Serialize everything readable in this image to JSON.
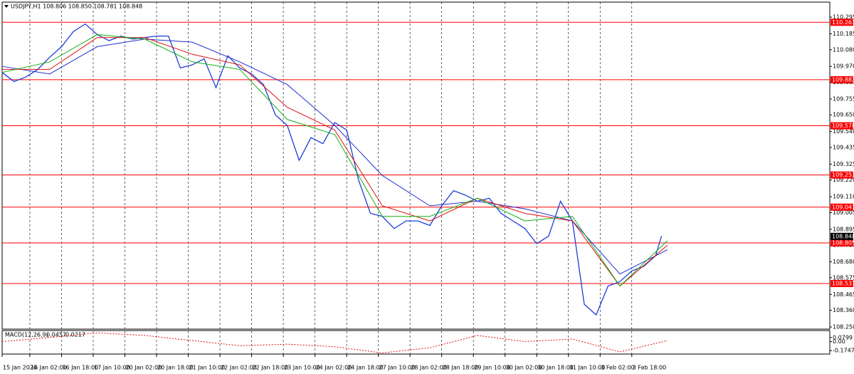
{
  "chart_data": {
    "type": "line",
    "title": "USDJPY,H1 108.806 108.850 108.781 108.848",
    "xlim": [
      0,
      418
    ],
    "ylim": [
      108.236,
      110.394
    ],
    "grid": true,
    "xticks": [
      {
        "value": 0,
        "label": "15 Jan 2020"
      },
      {
        "value": 14,
        "label": "16 Jan 02:00"
      },
      {
        "value": 30,
        "label": "16 Jan 18:00"
      },
      {
        "value": 46,
        "label": "17 Jan 10:00"
      },
      {
        "value": 62,
        "label": "20 Jan 02:00"
      },
      {
        "value": 78,
        "label": "20 Jan 18:00"
      },
      {
        "value": 94,
        "label": "21 Jan 10:00"
      },
      {
        "value": 110,
        "label": "22 Jan 02:00"
      },
      {
        "value": 126,
        "label": "22 Jan 18:00"
      },
      {
        "value": 142,
        "label": "23 Jan 10:00"
      },
      {
        "value": 158,
        "label": "24 Jan 02:00"
      },
      {
        "value": 174,
        "label": "24 Jan 18:00"
      },
      {
        "value": 190,
        "label": "27 Jan 10:00"
      },
      {
        "value": 206,
        "label": "28 Jan 02:00"
      },
      {
        "value": 222,
        "label": "28 Jan 18:00"
      },
      {
        "value": 238,
        "label": "29 Jan 10:00"
      },
      {
        "value": 254,
        "label": "30 Jan 02:00"
      },
      {
        "value": 270,
        "label": "30 Jan 18:00"
      },
      {
        "value": 286,
        "label": "31 Jan 10:00"
      },
      {
        "value": 302,
        "label": "3 Feb 02:00"
      },
      {
        "value": 318,
        "label": "3 Feb 18:00"
      }
    ],
    "yticks": [
      110.295,
      110.185,
      {
        "value": 110.08,
        "label": "110.080"
      },
      {
        "value": 109.97,
        "label": "109.970"
      },
      109.865,
      109.755,
      {
        "value": 109.65,
        "label": "109.650"
      },
      {
        "value": 109.54,
        "label": "109.540"
      },
      109.435,
      109.325,
      {
        "value": 109.22,
        "label": "109.220"
      },
      {
        "value": 109.11,
        "label": "109.110"
      },
      109.005,
      108.895,
      {
        "value": 108.79,
        "label": "108.790"
      },
      {
        "value": 108.68,
        "label": "108.680"
      },
      108.575,
      108.465,
      {
        "value": 108.36,
        "label": "108.360"
      },
      {
        "value": 108.25,
        "label": "108.250"
      }
    ],
    "levels": [
      110.261,
      109.882,
      109.578,
      109.253,
      109.041,
      108.805,
      108.537
    ],
    "level_color": "#ff0000",
    "current_price": 108.848,
    "series": [
      {
        "color": "#1e3fd8",
        "x": [
          0,
          6,
          12,
          18,
          24,
          30,
          36,
          42,
          48,
          54,
          60,
          66,
          72,
          78,
          84,
          90,
          96,
          102,
          108,
          114,
          120,
          126,
          132,
          138,
          144,
          150,
          156,
          162,
          168,
          174,
          180,
          186,
          192,
          198,
          204,
          210,
          216,
          222,
          228,
          234,
          240,
          246,
          252,
          258,
          264,
          270,
          276,
          282,
          288,
          294,
          300,
          306,
          312,
          318,
          324,
          330,
          333
        ],
        "values": [
          109.93,
          109.87,
          109.9,
          109.95,
          110.03,
          110.1,
          110.2,
          110.25,
          110.18,
          110.14,
          110.17,
          110.15,
          110.16,
          110.17,
          110.17,
          109.96,
          109.98,
          110.02,
          109.83,
          110.04,
          109.96,
          109.92,
          109.85,
          109.65,
          109.58,
          109.35,
          109.5,
          109.46,
          109.6,
          109.55,
          109.22,
          109.0,
          108.98,
          108.9,
          108.95,
          108.95,
          108.92,
          109.05,
          109.15,
          109.12,
          109.08,
          109.1,
          109.0,
          108.95,
          108.9,
          108.8,
          108.85,
          109.08,
          108.95,
          108.4,
          108.33,
          108.52,
          108.55,
          108.62,
          108.65,
          108.72,
          108.85
        ]
      },
      {
        "color": "#2030d0",
        "x": [
          0,
          24,
          48,
          72,
          96,
          120,
          144,
          168,
          192,
          216,
          240,
          264,
          288,
          312,
          336
        ],
        "values": [
          109.97,
          109.92,
          110.1,
          110.15,
          110.13,
          110.0,
          109.85,
          109.58,
          109.25,
          109.05,
          109.08,
          109.03,
          108.95,
          108.6,
          108.76
        ]
      },
      {
        "color": "#e01010",
        "x": [
          0,
          24,
          48,
          72,
          96,
          120,
          144,
          168,
          192,
          216,
          240,
          264,
          288,
          312,
          336
        ],
        "values": [
          109.95,
          109.95,
          110.16,
          110.16,
          110.05,
          109.98,
          109.7,
          109.55,
          109.05,
          108.95,
          109.1,
          109.0,
          108.95,
          108.52,
          108.79
        ]
      },
      {
        "color": "#10b010",
        "x": [
          0,
          24,
          48,
          72,
          96,
          120,
          144,
          168,
          192,
          216,
          240,
          264,
          288,
          312,
          336
        ],
        "values": [
          109.93,
          110.0,
          110.18,
          110.15,
          110.0,
          109.95,
          109.62,
          109.52,
          108.98,
          108.98,
          109.1,
          108.95,
          108.98,
          108.52,
          108.82
        ]
      }
    ],
    "macd": {
      "title": "MACD(12,26,9)",
      "main_value": "0.0457",
      "signal_value": "0.0217",
      "ylim": [
        -0.242,
        0.215
      ],
      "yticks": [
        0.0799,
        {
          "value": 0,
          "label": "0.00"
        },
        -0.1747
      ],
      "color": "#e01010",
      "x": [
        0,
        24,
        48,
        72,
        96,
        120,
        144,
        168,
        192,
        216,
        240,
        264,
        288,
        312,
        336
      ],
      "values": [
        0.0,
        0.08,
        0.17,
        0.12,
        0.02,
        -0.08,
        -0.05,
        -0.1,
        -0.22,
        -0.12,
        0.12,
        0.0,
        0.05,
        -0.2,
        0.02
      ]
    }
  }
}
